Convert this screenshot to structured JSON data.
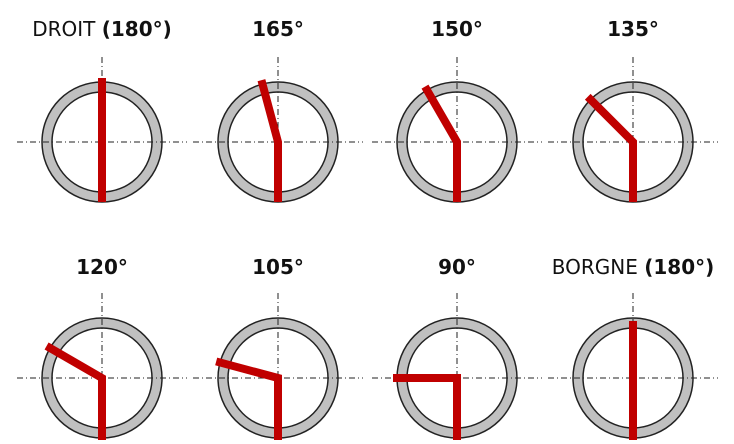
{
  "panels": [
    {
      "name": "DROIT",
      "angle": "(180°)"
    },
    {
      "angle": "165°"
    },
    {
      "angle": "150°"
    },
    {
      "angle": "135°"
    },
    {
      "angle": "120°"
    },
    {
      "angle": "105°"
    },
    {
      "angle": "90°"
    },
    {
      "name": "BORGNE",
      "angle": "(180°)"
    }
  ]
}
